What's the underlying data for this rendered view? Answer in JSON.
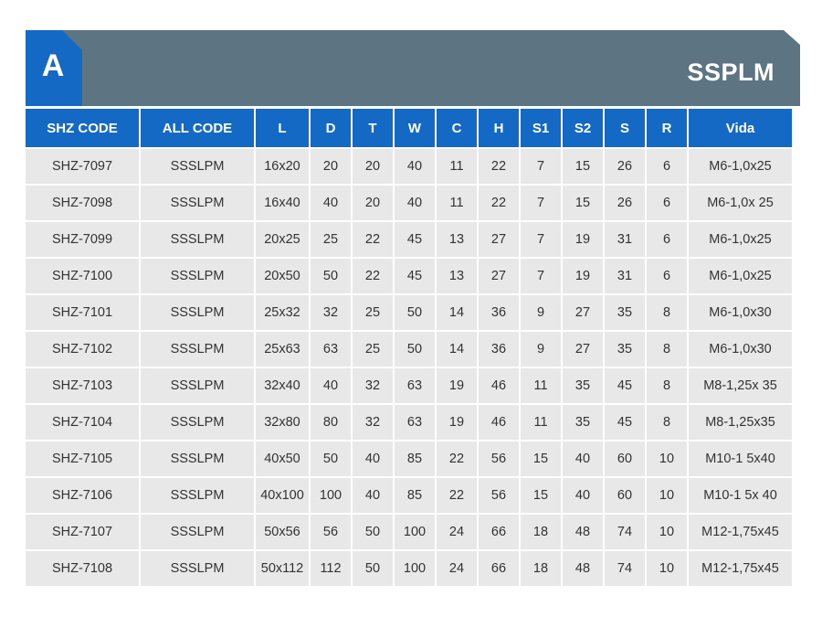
{
  "header": {
    "section_letter": "A",
    "title": "SSPLM",
    "colors": {
      "tab": "#1369c3",
      "banner": "#5d7583",
      "header_row": "#1369c3",
      "cell": "#e8e8e8"
    }
  },
  "table": {
    "columns": [
      "SHZ CODE",
      "ALL CODE",
      "L",
      "D",
      "T",
      "W",
      "C",
      "H",
      "S1",
      "S2",
      "S",
      "R",
      "Vida"
    ],
    "rows": [
      [
        "SHZ-7097",
        "SSSLPM",
        "16x20",
        "20",
        "20",
        "40",
        "11",
        "22",
        "7",
        "15",
        "26",
        "6",
        "M6-1,0x25"
      ],
      [
        "SHZ-7098",
        "SSSLPM",
        "16x40",
        "40",
        "20",
        "40",
        "11",
        "22",
        "7",
        "15",
        "26",
        "6",
        "M6-1,0x 25"
      ],
      [
        "SHZ-7099",
        "SSSLPM",
        "20x25",
        "25",
        "22",
        "45",
        "13",
        "27",
        "7",
        "19",
        "31",
        "6",
        "M6-1,0x25"
      ],
      [
        "SHZ-7100",
        "SSSLPM",
        "20x50",
        "50",
        "22",
        "45",
        "13",
        "27",
        "7",
        "19",
        "31",
        "6",
        "M6-1,0x25"
      ],
      [
        "SHZ-7101",
        "SSSLPM",
        "25x32",
        "32",
        "25",
        "50",
        "14",
        "36",
        "9",
        "27",
        "35",
        "8",
        "M6-1,0x30"
      ],
      [
        "SHZ-7102",
        "SSSLPM",
        "25x63",
        "63",
        "25",
        "50",
        "14",
        "36",
        "9",
        "27",
        "35",
        "8",
        "M6-1,0x30"
      ],
      [
        "SHZ-7103",
        "SSSLPM",
        "32x40",
        "40",
        "32",
        "63",
        "19",
        "46",
        "11",
        "35",
        "45",
        "8",
        "M8-1,25x 35"
      ],
      [
        "SHZ-7104",
        "SSSLPM",
        "32x80",
        "80",
        "32",
        "63",
        "19",
        "46",
        "11",
        "35",
        "45",
        "8",
        "M8-1,25x35"
      ],
      [
        "SHZ-7105",
        "SSSLPM",
        "40x50",
        "50",
        "40",
        "85",
        "22",
        "56",
        "15",
        "40",
        "60",
        "10",
        "M10-1 5x40"
      ],
      [
        "SHZ-7106",
        "SSSLPM",
        "40x100",
        "100",
        "40",
        "85",
        "22",
        "56",
        "15",
        "40",
        "60",
        "10",
        "M10-1 5x 40"
      ],
      [
        "SHZ-7107",
        "SSSLPM",
        "50x56",
        "56",
        "50",
        "100",
        "24",
        "66",
        "18",
        "48",
        "74",
        "10",
        "M12-1,75x45"
      ],
      [
        "SHZ-7108",
        "SSSLPM",
        "50x112",
        "112",
        "50",
        "100",
        "24",
        "66",
        "18",
        "48",
        "74",
        "10",
        "M12-1,75x45"
      ]
    ]
  }
}
